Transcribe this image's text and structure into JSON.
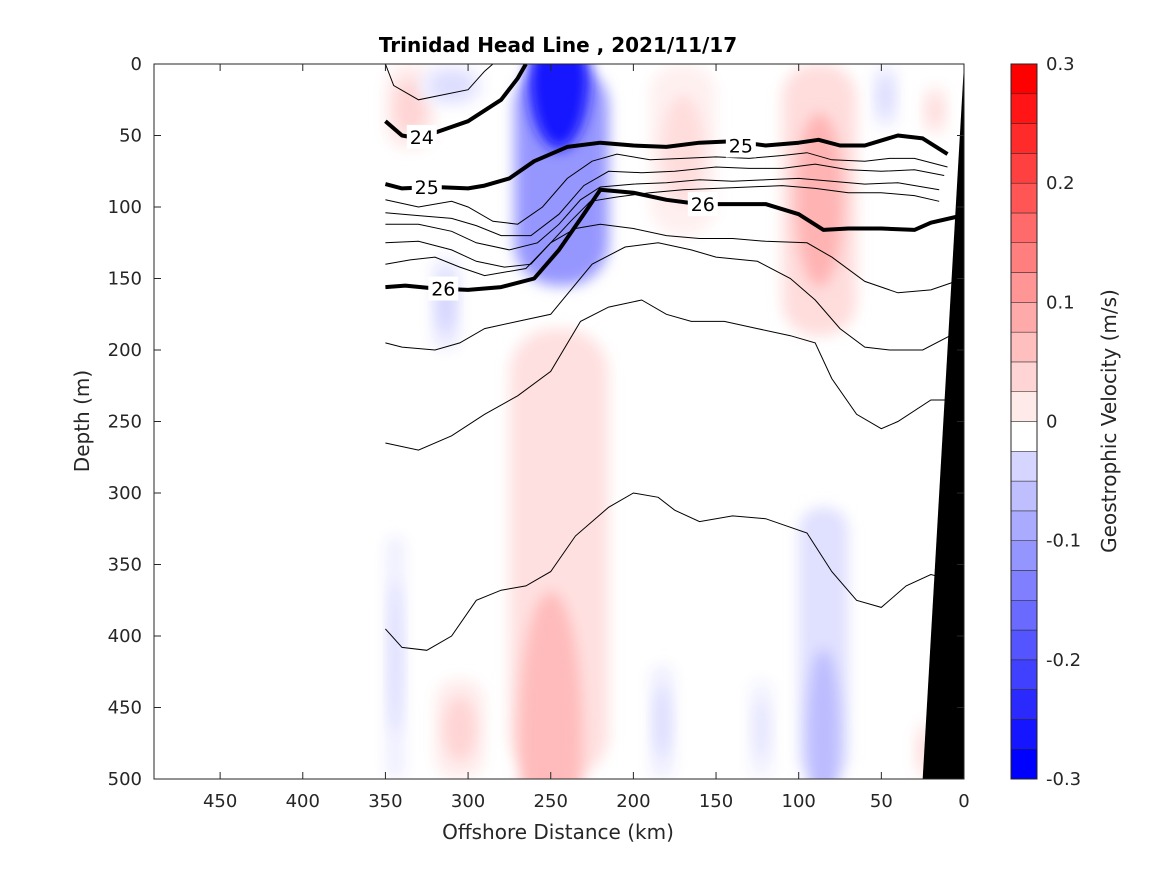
{
  "chart_data": {
    "type": "contour",
    "title": "Trinidad Head Line , 2021/11/17",
    "xlabel": "Offshore Distance (km)",
    "ylabel": "Depth (m)",
    "xlim": [
      490,
      0
    ],
    "ylim": [
      0,
      500
    ],
    "x_direction": "reversed",
    "y_direction": "reversed",
    "x_ticks": [
      450,
      400,
      350,
      300,
      250,
      200,
      150,
      100,
      50,
      0
    ],
    "y_ticks": [
      0,
      50,
      100,
      150,
      200,
      250,
      300,
      350,
      400,
      450,
      500
    ],
    "colorbar": {
      "label": "Geostrophic Velocity (m/s)",
      "range": [
        -0.3,
        0.3
      ],
      "step": 0.025,
      "ticks": [
        -0.3,
        -0.2,
        -0.1,
        0,
        0.1,
        0.2,
        0.3
      ],
      "tick_labels": [
        "-0.3",
        "-0.2",
        "-0.1",
        "0",
        "0.1",
        "0.2",
        "0.3"
      ],
      "negative_color": "#0000ff",
      "positive_color": "#ff0000",
      "neutral_color": "#ffffff"
    },
    "velocity_features": [
      {
        "sign": "negative",
        "x_range": [
          272,
          215
        ],
        "depth_range": [
          0,
          155
        ],
        "peak": -0.275,
        "core_x": 245,
        "core_depth": 10
      },
      {
        "sign": "positive",
        "x_range": [
          350,
          320
        ],
        "depth_range": [
          0,
          60
        ],
        "peak": 0.05
      },
      {
        "sign": "negative",
        "x_range": [
          330,
          290
        ],
        "depth_range": [
          0,
          30
        ],
        "peak": -0.04
      },
      {
        "sign": "positive",
        "x_range": [
          190,
          150
        ],
        "depth_range": [
          0,
          120
        ],
        "peak": 0.04
      },
      {
        "sign": "positive",
        "x_range": [
          110,
          65
        ],
        "depth_range": [
          0,
          190
        ],
        "peak": 0.09
      },
      {
        "sign": "negative",
        "x_range": [
          55,
          40
        ],
        "depth_range": [
          0,
          45
        ],
        "peak": -0.04
      },
      {
        "sign": "positive",
        "x_range": [
          25,
          10
        ],
        "depth_range": [
          15,
          50
        ],
        "peak": 0.04
      },
      {
        "sign": "negative",
        "x_range": [
          322,
          305
        ],
        "depth_range": [
          135,
          200
        ],
        "peak": -0.05
      },
      {
        "sign": "positive",
        "x_range": [
          275,
          215
        ],
        "depth_range": [
          185,
          500
        ],
        "peak": 0.08,
        "core_x": 250,
        "core_depth": 470
      },
      {
        "sign": "positive",
        "x_range": [
          320,
          290
        ],
        "depth_range": [
          430,
          500
        ],
        "peak": 0.05
      },
      {
        "sign": "negative",
        "x_range": [
          350,
          338
        ],
        "depth_range": [
          330,
          500
        ],
        "peak": -0.04
      },
      {
        "sign": "negative",
        "x_range": [
          100,
          70
        ],
        "depth_range": [
          310,
          500
        ],
        "peak": -0.08,
        "core_x": 85,
        "core_depth": 470
      },
      {
        "sign": "negative",
        "x_range": [
          190,
          175
        ],
        "depth_range": [
          420,
          500
        ],
        "peak": -0.04
      },
      {
        "sign": "negative",
        "x_range": [
          130,
          115
        ],
        "depth_range": [
          430,
          500
        ],
        "peak": -0.03
      },
      {
        "sign": "positive",
        "x_range": [
          30,
          15
        ],
        "depth_range": [
          460,
          500
        ],
        "peak": 0.04
      }
    ],
    "density_contours": [
      {
        "level": "24",
        "bold": true,
        "points": [
          [
            350,
            40
          ],
          [
            340,
            50
          ],
          [
            330,
            52
          ],
          [
            300,
            40
          ],
          [
            280,
            25
          ],
          [
            270,
            10
          ],
          [
            265,
            0
          ]
        ],
        "label": {
          "text": "24",
          "x": 328,
          "depth": 51
        }
      },
      {
        "level": "25",
        "bold": true,
        "points": [
          [
            350,
            84
          ],
          [
            340,
            87
          ],
          [
            320,
            86
          ],
          [
            300,
            87
          ],
          [
            290,
            85
          ],
          [
            275,
            80
          ],
          [
            260,
            68
          ],
          [
            240,
            58
          ],
          [
            220,
            55
          ],
          [
            200,
            57
          ],
          [
            180,
            58
          ],
          [
            160,
            55
          ],
          [
            140,
            54
          ],
          [
            120,
            57
          ],
          [
            100,
            55
          ],
          [
            88,
            53
          ],
          [
            75,
            57
          ],
          [
            60,
            57
          ],
          [
            40,
            50
          ],
          [
            25,
            52
          ],
          [
            10,
            63
          ]
        ],
        "label": {
          "text": "25",
          "x": 135,
          "depth": 57
        }
      },
      {
        "level": "26",
        "bold": true,
        "points": [
          [
            350,
            156
          ],
          [
            338,
            155
          ],
          [
            320,
            157
          ],
          [
            300,
            158
          ],
          [
            280,
            156
          ],
          [
            260,
            150
          ],
          [
            245,
            130
          ],
          [
            230,
            105
          ],
          [
            220,
            88
          ],
          [
            200,
            90
          ],
          [
            180,
            95
          ],
          [
            160,
            98
          ],
          [
            140,
            98
          ],
          [
            120,
            98
          ],
          [
            100,
            105
          ],
          [
            85,
            116
          ],
          [
            70,
            115
          ],
          [
            50,
            115
          ],
          [
            30,
            116
          ],
          [
            20,
            111
          ],
          [
            5,
            107
          ],
          [
            0,
            104
          ]
        ],
        "label": {
          "text": "26",
          "x": 158,
          "depth": 98
        }
      }
    ],
    "contour_labels": [
      "24",
      "25",
      "25",
      "26",
      "26"
    ],
    "bathymetry": {
      "color": "#000000",
      "points": [
        [
          25,
          500
        ],
        [
          0,
          0
        ]
      ]
    }
  }
}
